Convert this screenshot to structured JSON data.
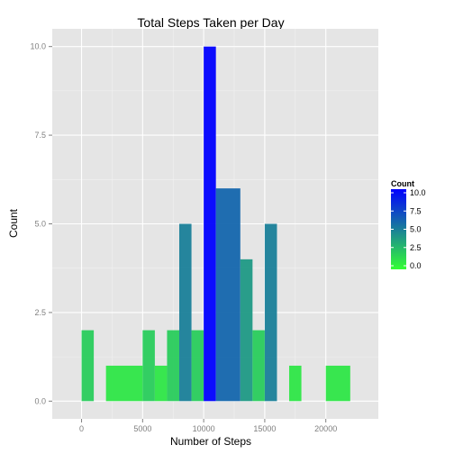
{
  "chart_data": {
    "type": "bar",
    "title": "Total Steps Taken per Day",
    "xlabel": "Number of Steps",
    "ylabel": "Count",
    "xlim": [
      -2400,
      24300
    ],
    "ylim": [
      -0.5,
      10.5
    ],
    "xticks": [
      0,
      5000,
      10000,
      15000,
      20000
    ],
    "xtick_labels": [
      "0",
      "5000",
      "10000",
      "15000",
      "20000"
    ],
    "yticks": [
      0,
      2.5,
      5,
      7.5,
      10
    ],
    "ytick_labels": [
      "0.0",
      "2.5",
      "5.0",
      "7.5",
      "10.0"
    ],
    "binwidth": 1000,
    "bins": [
      {
        "x0": 0,
        "x1": 1000,
        "count": 2
      },
      {
        "x0": 2000,
        "x1": 5000,
        "count": 1
      },
      {
        "x0": 5000,
        "x1": 6000,
        "count": 2
      },
      {
        "x0": 6000,
        "x1": 7000,
        "count": 1
      },
      {
        "x0": 7000,
        "x1": 8000,
        "count": 2
      },
      {
        "x0": 8000,
        "x1": 9000,
        "count": 5
      },
      {
        "x0": 9000,
        "x1": 10000,
        "count": 2
      },
      {
        "x0": 10000,
        "x1": 11000,
        "count": 10
      },
      {
        "x0": 11000,
        "x1": 13000,
        "count": 6
      },
      {
        "x0": 13000,
        "x1": 14000,
        "count": 4
      },
      {
        "x0": 14000,
        "x1": 15000,
        "count": 2
      },
      {
        "x0": 15000,
        "x1": 16000,
        "count": 5
      },
      {
        "x0": 17000,
        "x1": 18000,
        "count": 1
      },
      {
        "x0": 20000,
        "x1": 22000,
        "count": 1
      }
    ],
    "grid": true,
    "legend": {
      "title": "Count",
      "placement": "right",
      "ticks": [
        10,
        7.5,
        5,
        2.5,
        0
      ],
      "tick_labels": [
        "10.0",
        "7.5",
        "5.0",
        "2.5",
        "0.0"
      ],
      "low_color": "#33ff33",
      "high_color": "#0000ff"
    },
    "colors": {
      "panel_background": "#e5e5e5",
      "grid_major": "#ffffff",
      "grid_minor": "#f2f2f2",
      "tick_text": "#7f7f7f"
    }
  }
}
